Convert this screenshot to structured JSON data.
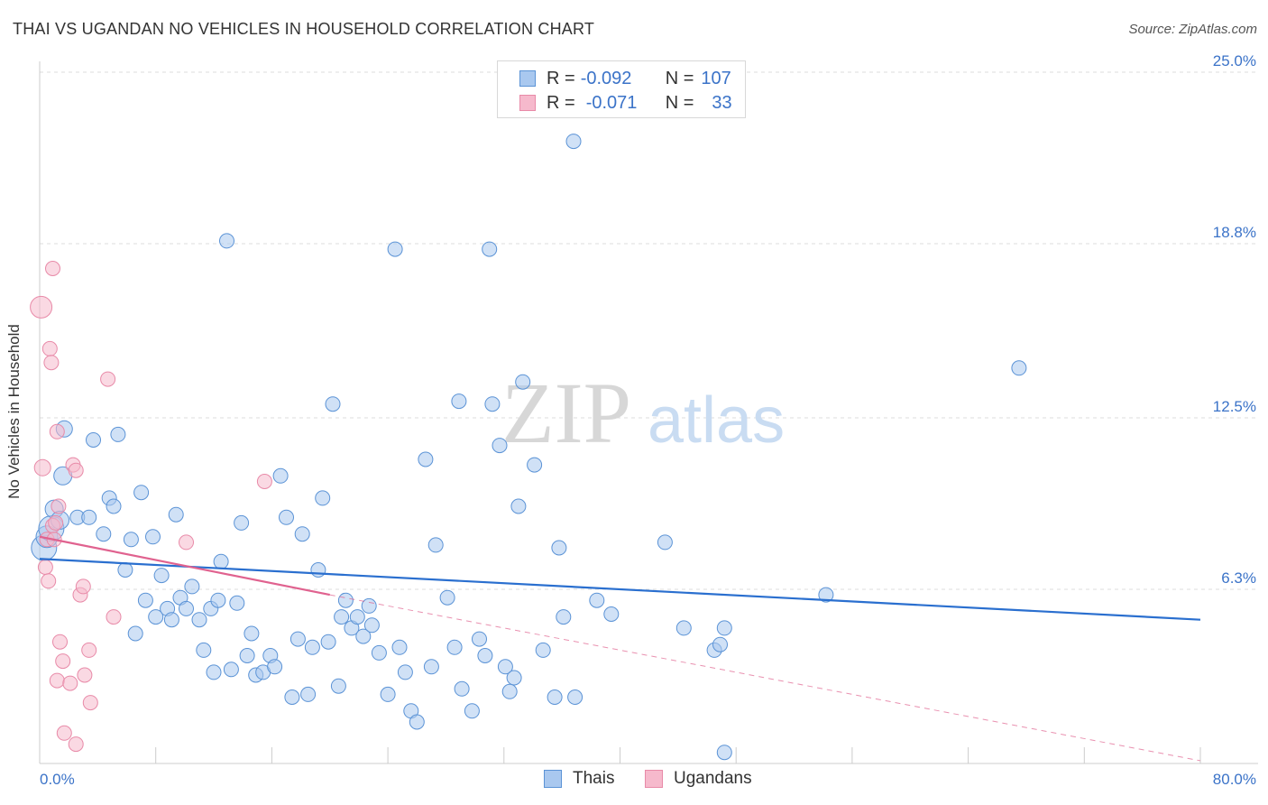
{
  "header": {
    "title": "THAI VS UGANDAN NO VEHICLES IN HOUSEHOLD CORRELATION CHART",
    "source": "Source: ZipAtlas.com"
  },
  "legend": {
    "rows": [
      {
        "r_label": "R =",
        "r_value": "-0.092",
        "n_label": "N =",
        "n_value": "107",
        "color": "#a9c8ef"
      },
      {
        "r_label": "R =",
        "r_value": "-0.071",
        "n_label": "N =",
        "n_value": "33",
        "color": "#f6b9cc"
      }
    ]
  },
  "watermark": {
    "zip": "ZIP",
    "atlas": "atlas"
  },
  "chart_data": {
    "type": "scatter",
    "title": "THAI VS UGANDAN NO VEHICLES IN HOUSEHOLD CORRELATION CHART",
    "xlabel": "",
    "ylabel": "No Vehicles in Household",
    "xlim": [
      0,
      80
    ],
    "ylim": [
      0,
      25
    ],
    "x_tick_labels": [
      "0.0%",
      "80.0%"
    ],
    "y_ticks": [
      6.3,
      12.5,
      18.8,
      25.0
    ],
    "y_tick_labels": [
      "6.3%",
      "12.5%",
      "18.8%",
      "25.0%"
    ],
    "grid": true,
    "legend_position": "top-center",
    "series": [
      {
        "name": "Thais",
        "color": "#5b93d6",
        "fill": "#a9c8ef",
        "trend": {
          "x0": 0,
          "y0": 7.4,
          "x1": 80,
          "y1": 5.2,
          "color": "#2a6fcf"
        },
        "points": [
          [
            0.3,
            7.8,
            18
          ],
          [
            0.5,
            8.2,
            14
          ],
          [
            0.8,
            8.5,
            16
          ],
          [
            1.0,
            9.2,
            12
          ],
          [
            1.4,
            8.8,
            12
          ],
          [
            1.6,
            10.4,
            12
          ],
          [
            1.7,
            12.1,
            11
          ],
          [
            2.6,
            8.9,
            10
          ],
          [
            3.4,
            8.9,
            10
          ],
          [
            3.7,
            11.7,
            10
          ],
          [
            4.4,
            8.3,
            10
          ],
          [
            4.8,
            9.6,
            10
          ],
          [
            5.1,
            9.3,
            10
          ],
          [
            5.4,
            11.9,
            10
          ],
          [
            5.9,
            7.0,
            10
          ],
          [
            6.3,
            8.1,
            10
          ],
          [
            6.6,
            4.7,
            10
          ],
          [
            7.0,
            9.8,
            10
          ],
          [
            7.3,
            5.9,
            10
          ],
          [
            7.8,
            8.2,
            10
          ],
          [
            8.0,
            5.3,
            10
          ],
          [
            8.4,
            6.8,
            10
          ],
          [
            8.8,
            5.6,
            10
          ],
          [
            9.1,
            5.2,
            10
          ],
          [
            9.4,
            9.0,
            10
          ],
          [
            9.7,
            6.0,
            10
          ],
          [
            10.1,
            5.6,
            10
          ],
          [
            10.5,
            6.4,
            10
          ],
          [
            11.0,
            5.2,
            10
          ],
          [
            11.3,
            4.1,
            10
          ],
          [
            11.8,
            5.6,
            10
          ],
          [
            12.0,
            3.3,
            10
          ],
          [
            12.3,
            5.9,
            10
          ],
          [
            12.5,
            7.3,
            10
          ],
          [
            12.9,
            18.9,
            10
          ],
          [
            13.2,
            3.4,
            10
          ],
          [
            13.6,
            5.8,
            10
          ],
          [
            13.9,
            8.7,
            10
          ],
          [
            14.3,
            3.9,
            10
          ],
          [
            14.6,
            4.7,
            10
          ],
          [
            14.9,
            3.2,
            10
          ],
          [
            15.4,
            3.3,
            10
          ],
          [
            15.9,
            3.9,
            10
          ],
          [
            16.2,
            3.5,
            10
          ],
          [
            16.6,
            10.4,
            10
          ],
          [
            17.0,
            8.9,
            10
          ],
          [
            17.4,
            2.4,
            10
          ],
          [
            17.8,
            4.5,
            10
          ],
          [
            18.1,
            8.3,
            10
          ],
          [
            18.5,
            2.5,
            10
          ],
          [
            18.8,
            4.2,
            10
          ],
          [
            19.2,
            7.0,
            10
          ],
          [
            19.5,
            9.6,
            10
          ],
          [
            19.9,
            4.4,
            10
          ],
          [
            20.2,
            13.0,
            10
          ],
          [
            20.6,
            2.8,
            10
          ],
          [
            20.8,
            5.3,
            10
          ],
          [
            21.1,
            5.9,
            10
          ],
          [
            21.5,
            4.9,
            10
          ],
          [
            21.9,
            5.3,
            10
          ],
          [
            22.3,
            4.6,
            10
          ],
          [
            22.7,
            5.7,
            10
          ],
          [
            22.9,
            5.0,
            10
          ],
          [
            23.4,
            4.0,
            10
          ],
          [
            24.0,
            2.5,
            10
          ],
          [
            24.5,
            18.6,
            10
          ],
          [
            24.8,
            4.2,
            10
          ],
          [
            25.2,
            3.3,
            10
          ],
          [
            25.6,
            1.9,
            10
          ],
          [
            26.0,
            1.5,
            10
          ],
          [
            26.6,
            11.0,
            10
          ],
          [
            27.0,
            3.5,
            10
          ],
          [
            27.3,
            7.9,
            10
          ],
          [
            28.1,
            6.0,
            10
          ],
          [
            28.6,
            4.2,
            10
          ],
          [
            28.9,
            13.1,
            10
          ],
          [
            29.1,
            2.7,
            10
          ],
          [
            29.8,
            1.9,
            10
          ],
          [
            30.3,
            4.5,
            10
          ],
          [
            30.7,
            3.9,
            10
          ],
          [
            31.0,
            18.6,
            10
          ],
          [
            31.2,
            13.0,
            10
          ],
          [
            31.7,
            11.5,
            10
          ],
          [
            32.1,
            3.5,
            10
          ],
          [
            32.4,
            2.6,
            10
          ],
          [
            32.7,
            3.1,
            10
          ],
          [
            33.0,
            9.3,
            10
          ],
          [
            33.3,
            13.8,
            10
          ],
          [
            34.1,
            10.8,
            10
          ],
          [
            34.7,
            4.1,
            10
          ],
          [
            35.5,
            2.4,
            10
          ],
          [
            35.8,
            7.8,
            10
          ],
          [
            36.1,
            5.3,
            10
          ],
          [
            36.8,
            22.5,
            10
          ],
          [
            36.9,
            2.4,
            10
          ],
          [
            38.4,
            5.9,
            10
          ],
          [
            39.4,
            5.4,
            10
          ],
          [
            43.1,
            8.0,
            10
          ],
          [
            44.4,
            4.9,
            10
          ],
          [
            46.5,
            4.1,
            10
          ],
          [
            46.9,
            4.3,
            10
          ],
          [
            47.2,
            4.9,
            10
          ],
          [
            47.2,
            0.4,
            10
          ],
          [
            54.2,
            6.1,
            10
          ],
          [
            67.5,
            14.3,
            10
          ]
        ]
      },
      {
        "name": "Ugandans",
        "color": "#e88aa8",
        "fill": "#f6b9cc",
        "trend": {
          "x0": 0,
          "y0": 8.2,
          "x1": 20,
          "y1": 6.1,
          "color": "#e0628f"
        },
        "trend_extension": {
          "x0": 20,
          "y0": 6.1,
          "x1": 80,
          "y1": 0.1
        },
        "points": [
          [
            0.1,
            16.5,
            14
          ],
          [
            0.2,
            10.7,
            11
          ],
          [
            0.4,
            7.1,
            10
          ],
          [
            0.5,
            8.1,
            10
          ],
          [
            0.6,
            6.6,
            10
          ],
          [
            0.7,
            15.0,
            10
          ],
          [
            0.8,
            14.5,
            10
          ],
          [
            0.9,
            8.6,
            10
          ],
          [
            0.9,
            17.9,
            10
          ],
          [
            1.0,
            8.1,
            10
          ],
          [
            1.1,
            8.7,
            10
          ],
          [
            1.2,
            3.0,
            10
          ],
          [
            1.2,
            12.0,
            10
          ],
          [
            1.3,
            9.3,
            10
          ],
          [
            1.4,
            4.4,
            10
          ],
          [
            1.6,
            3.7,
            10
          ],
          [
            1.7,
            1.1,
            10
          ],
          [
            2.1,
            2.9,
            10
          ],
          [
            2.3,
            10.8,
            10
          ],
          [
            2.5,
            10.6,
            10
          ],
          [
            2.5,
            0.7,
            10
          ],
          [
            2.8,
            6.1,
            10
          ],
          [
            3.0,
            6.4,
            10
          ],
          [
            3.1,
            3.2,
            10
          ],
          [
            3.4,
            4.1,
            10
          ],
          [
            3.5,
            2.2,
            10
          ],
          [
            5.1,
            5.3,
            10
          ],
          [
            4.7,
            13.9,
            10
          ],
          [
            10.1,
            8.0,
            10
          ],
          [
            15.5,
            10.2,
            10
          ]
        ]
      }
    ]
  },
  "bottom_legend": [
    {
      "label": "Thais",
      "color": "#a9c8ef",
      "border": "#5b93d6"
    },
    {
      "label": "Ugandans",
      "color": "#f6b9cc",
      "border": "#e88aa8"
    }
  ]
}
